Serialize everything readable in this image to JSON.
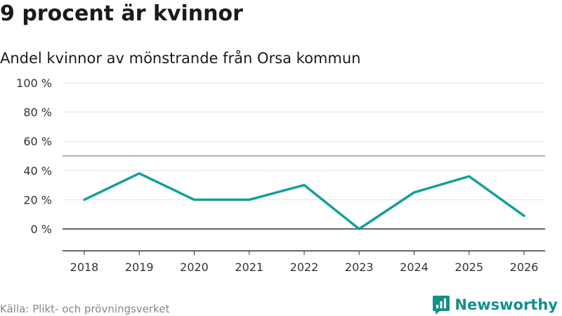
{
  "header": {
    "title": "9 procent är kvinnor",
    "subtitle": "Andel kvinnor av mönstrande från Orsa kommun"
  },
  "footer": {
    "source": "Källa: Plikt- och prövningsverket",
    "brand": "Newsworthy"
  },
  "colors": {
    "line": "#14a098",
    "brand": "#14908a"
  },
  "chart_data": {
    "type": "line",
    "title": "9 procent är kvinnor",
    "subtitle": "Andel kvinnor av mönstrande från Orsa kommun",
    "xlabel": "",
    "ylabel": "",
    "x": [
      "2018",
      "2019",
      "2020",
      "2021",
      "2022",
      "2023",
      "2024",
      "2025",
      "2026"
    ],
    "series": [
      {
        "name": "Andel kvinnor",
        "values": [
          20,
          38,
          20,
          20,
          30,
          0,
          25,
          36,
          9
        ]
      }
    ],
    "ylim": [
      -15,
      100
    ],
    "yticks": [
      0,
      20,
      40,
      60,
      80,
      100
    ],
    "ytick_labels": [
      "0 %",
      "20 %",
      "40 %",
      "60 %",
      "80 %",
      "100 %"
    ],
    "grid": true,
    "reference_line": 50
  }
}
